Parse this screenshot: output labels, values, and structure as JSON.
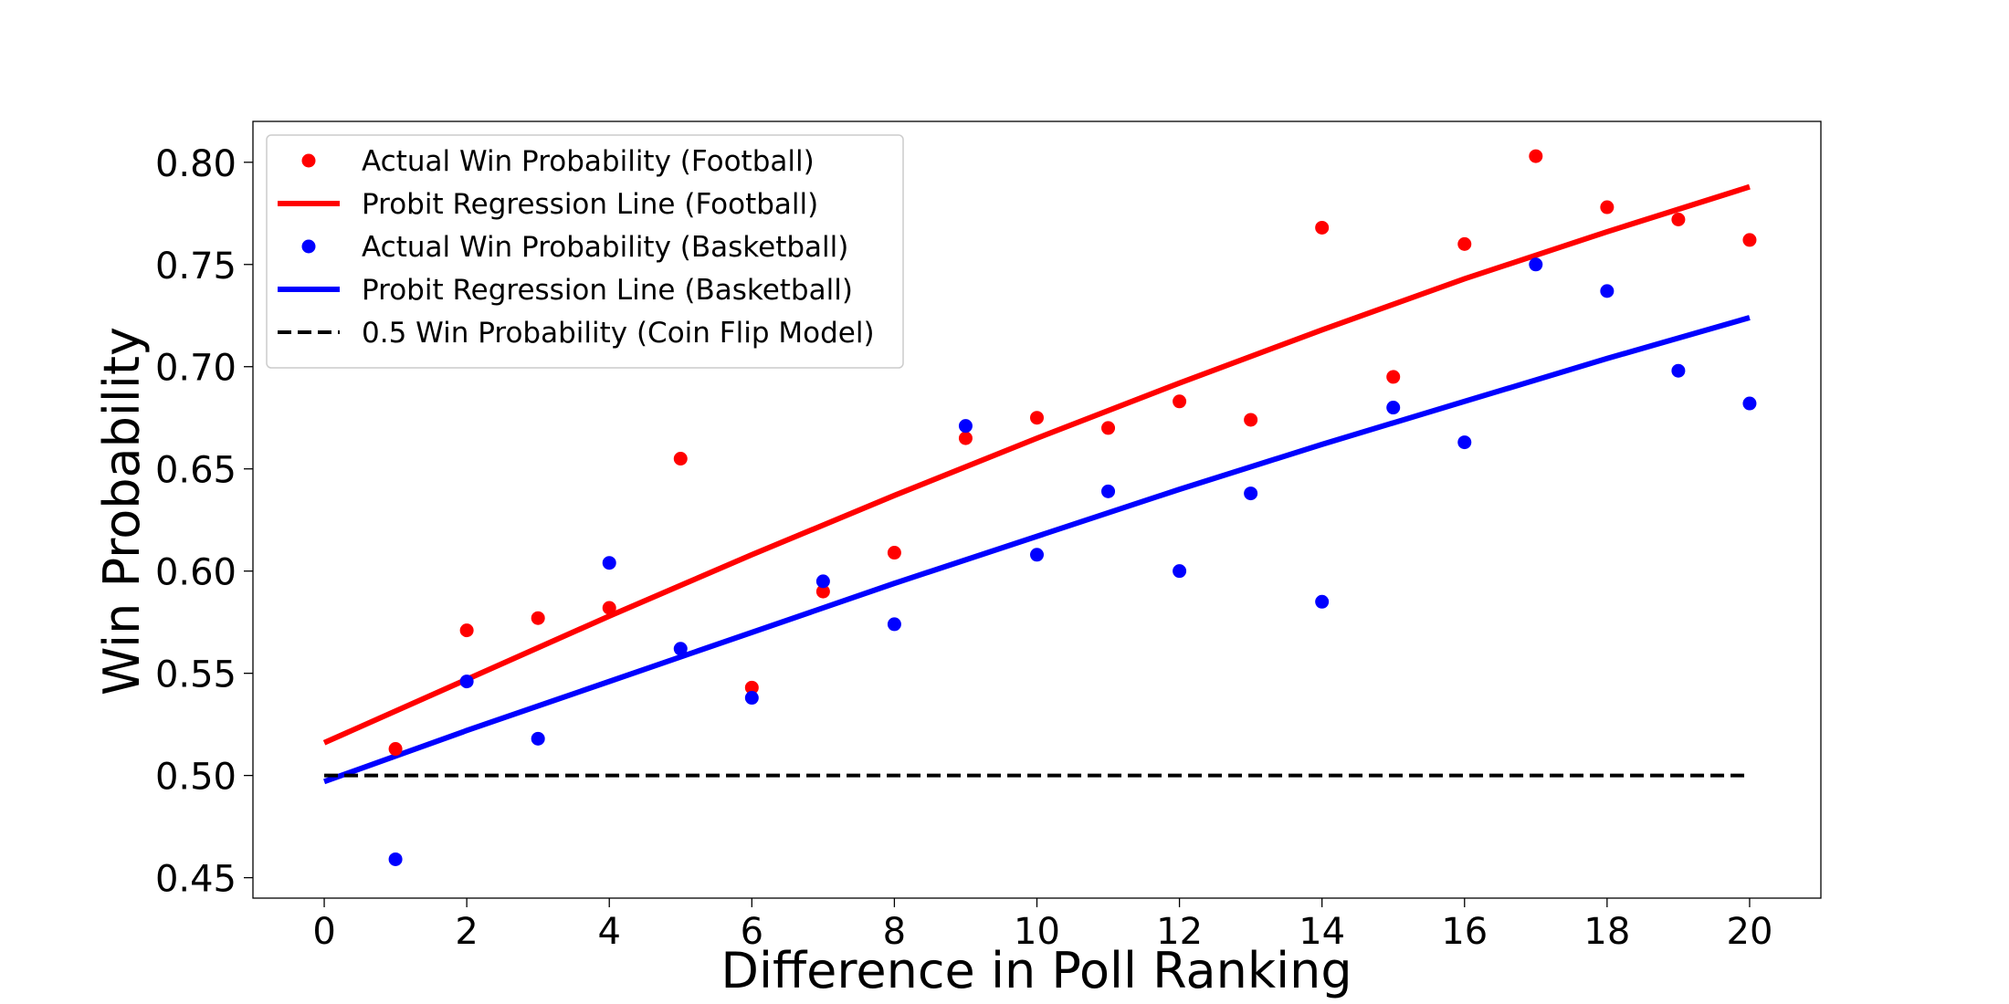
{
  "chart_data": {
    "type": "scatter",
    "title": "",
    "xlabel": "Difference in Poll Ranking",
    "ylabel": "Win Probability",
    "xlim": [
      -1,
      21
    ],
    "ylim": [
      0.44,
      0.82
    ],
    "xticks": [
      0,
      2,
      4,
      6,
      8,
      10,
      12,
      14,
      16,
      18,
      20
    ],
    "xtick_labels": [
      "0",
      "2",
      "4",
      "6",
      "8",
      "10",
      "12",
      "14",
      "16",
      "18",
      "20"
    ],
    "yticks": [
      0.45,
      0.5,
      0.55,
      0.6,
      0.65,
      0.7,
      0.75,
      0.8
    ],
    "ytick_labels": [
      "0.45",
      "0.50",
      "0.55",
      "0.60",
      "0.65",
      "0.70",
      "0.75",
      "0.80"
    ],
    "grid": false,
    "legend_position": "top-left",
    "series": [
      {
        "name": "Actual Win Probability (Football)",
        "kind": "scatter",
        "color": "#ff0000",
        "x": [
          1,
          2,
          3,
          4,
          5,
          6,
          7,
          8,
          9,
          10,
          11,
          12,
          13,
          14,
          15,
          16,
          17,
          18,
          19,
          20
        ],
        "y": [
          0.513,
          0.571,
          0.577,
          0.582,
          0.655,
          0.543,
          0.59,
          0.609,
          0.665,
          0.675,
          0.67,
          0.683,
          0.674,
          0.768,
          0.695,
          0.76,
          0.803,
          0.778,
          0.772,
          0.762
        ]
      },
      {
        "name": "Probit Regression Line (Football)",
        "kind": "line",
        "color": "#ff0000",
        "x": [
          0,
          2,
          4,
          6,
          8,
          10,
          12,
          14,
          16,
          18,
          20
        ],
        "y": [
          0.516,
          0.547,
          0.578,
          0.608,
          0.637,
          0.665,
          0.692,
          0.718,
          0.743,
          0.766,
          0.788
        ]
      },
      {
        "name": "Actual Win Probability (Basketball)",
        "kind": "scatter",
        "color": "#0000ff",
        "x": [
          1,
          2,
          3,
          4,
          5,
          6,
          7,
          8,
          9,
          10,
          11,
          12,
          13,
          14,
          15,
          16,
          17,
          18,
          19,
          20
        ],
        "y": [
          0.459,
          0.546,
          0.518,
          0.604,
          0.562,
          0.538,
          0.595,
          0.574,
          0.671,
          0.608,
          0.639,
          0.6,
          0.638,
          0.585,
          0.68,
          0.663,
          0.75,
          0.737,
          0.698,
          0.682
        ]
      },
      {
        "name": "Probit Regression Line (Basketball)",
        "kind": "line",
        "color": "#0000ff",
        "x": [
          0,
          2,
          4,
          6,
          8,
          10,
          12,
          14,
          16,
          18,
          20
        ],
        "y": [
          0.497,
          0.522,
          0.546,
          0.57,
          0.594,
          0.617,
          0.64,
          0.662,
          0.683,
          0.704,
          0.724
        ]
      },
      {
        "name": "0.5 Win Probability (Coin Flip Model)",
        "kind": "dashed-line",
        "color": "#000000",
        "x": [
          0,
          20
        ],
        "y": [
          0.5,
          0.5
        ]
      }
    ]
  }
}
